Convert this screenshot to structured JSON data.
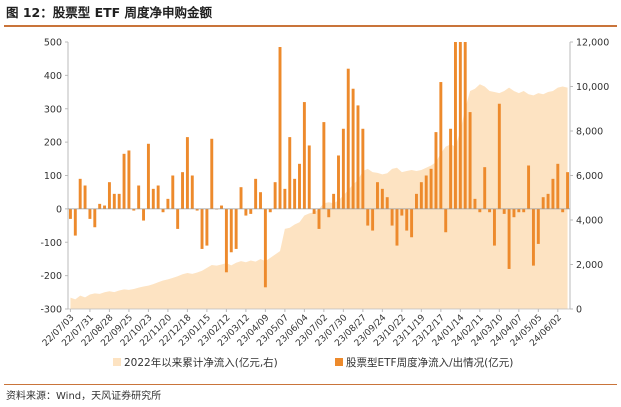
{
  "figure": {
    "title": "图 12：股票型 ETF 周度净申购金额",
    "source": "资料来源：Wind，天风证券研究所"
  },
  "colors": {
    "bar": "#ed8a2c",
    "area": "#fde3c2",
    "rule": "#c9743a",
    "axis": "#bbbbbb"
  },
  "chart_data": {
    "type": "bar",
    "title": "",
    "xlabel": "",
    "ylabel": "",
    "ylim": [
      -300,
      500
    ],
    "y2lim": [
      0,
      12000
    ],
    "yticks": [
      -300,
      -200,
      -100,
      0,
      100,
      200,
      300,
      400,
      500
    ],
    "y2ticks": [
      0,
      2000,
      4000,
      6000,
      8000,
      10000,
      12000
    ],
    "y2tick_labels": [
      "0",
      "2,000",
      "4,000",
      "6,000",
      "8,000",
      "10,000",
      "12,000"
    ],
    "grid": false,
    "legend_position": "bottom",
    "categories": [
      "22/07/03",
      "22/07/10",
      "22/07/17",
      "22/07/24",
      "22/07/31",
      "22/08/07",
      "22/08/14",
      "22/08/21",
      "22/08/28",
      "22/09/04",
      "22/09/11",
      "22/09/18",
      "22/09/25",
      "22/10/02",
      "22/10/09",
      "22/10/16",
      "22/10/23",
      "22/10/30",
      "22/11/06",
      "22/11/13",
      "22/11/20",
      "22/11/27",
      "22/12/04",
      "22/12/11",
      "22/12/18",
      "22/12/25",
      "23/01/01",
      "23/01/08",
      "23/01/15",
      "23/01/22",
      "23/01/29",
      "23/02/05",
      "23/02/12",
      "23/02/19",
      "23/02/26",
      "23/03/05",
      "23/03/12",
      "23/03/19",
      "23/03/26",
      "23/04/02",
      "23/04/09",
      "23/04/16",
      "23/04/23",
      "23/04/30",
      "23/05/07",
      "23/05/14",
      "23/05/21",
      "23/05/28",
      "23/06/04",
      "23/06/11",
      "23/06/18",
      "23/06/25",
      "23/07/02",
      "23/07/09",
      "23/07/16",
      "23/07/23",
      "23/07/30",
      "23/08/06",
      "23/08/13",
      "23/08/20",
      "23/08/27",
      "23/09/03",
      "23/09/10",
      "23/09/17",
      "23/09/24",
      "23/10/01",
      "23/10/08",
      "23/10/15",
      "23/10/22",
      "23/10/29",
      "23/11/05",
      "23/11/12",
      "23/11/19",
      "23/11/26",
      "23/12/03",
      "23/12/10",
      "23/12/17",
      "23/12/24",
      "23/12/31",
      "24/01/07",
      "24/01/14",
      "24/01/21",
      "24/01/28",
      "24/02/04",
      "24/02/11",
      "24/02/18",
      "24/02/25",
      "24/03/03",
      "24/03/10",
      "24/03/17",
      "24/03/24",
      "24/03/31",
      "24/04/07",
      "24/04/14",
      "24/04/21",
      "24/04/28",
      "24/05/05",
      "24/05/12",
      "24/05/19",
      "24/05/26",
      "24/06/02",
      "24/06/09",
      "24/06/16"
    ],
    "x_tick_labels": [
      "22/07/03",
      "22/07/31",
      "22/08/28",
      "22/09/25",
      "22/10/23",
      "22/11/20",
      "22/12/18",
      "23/01/15",
      "23/02/12",
      "23/03/12",
      "23/04/09",
      "23/05/07",
      "23/06/04",
      "23/07/02",
      "23/07/30",
      "23/08/27",
      "23/09/24",
      "23/10/22",
      "23/11/19",
      "23/12/17",
      "24/01/14",
      "24/02/11",
      "24/03/10",
      "24/04/07",
      "24/05/05",
      "24/06/02"
    ],
    "series": [
      {
        "name": "2022年以来累计净流入(亿元,右)",
        "type": "area",
        "axis": "right",
        "values": [
          510,
          430,
          600,
          520,
          650,
          700,
          680,
          750,
          800,
          760,
          830,
          880,
          860,
          900,
          960,
          1010,
          1050,
          1120,
          1200,
          1280,
          1330,
          1400,
          1470,
          1560,
          1620,
          1580,
          1640,
          1720,
          1850,
          1980,
          1950,
          2000,
          2060,
          1960,
          2080,
          2150,
          2100,
          2180,
          2130,
          2250,
          2150,
          2300,
          2450,
          2600,
          3600,
          3650,
          3800,
          3900,
          4200,
          4300,
          4350,
          4500,
          4750,
          4800,
          4750,
          4880,
          5100,
          5350,
          5600,
          5800,
          6200,
          6300,
          6150,
          6120,
          6050,
          6100,
          6300,
          6350,
          6150,
          6200,
          6250,
          6200,
          6250,
          6350,
          6450,
          6600,
          7000,
          7300,
          7400,
          7300,
          8000,
          9000,
          9800,
          9900,
          10100,
          10000,
          9800,
          9750,
          9700,
          9800,
          9950,
          9800,
          9700,
          9800,
          9650,
          9600,
          9700,
          9650,
          9750,
          9800,
          9950,
          10000,
          9950
        ]
      },
      {
        "name": "股票型ETF周度净流入/出情况(亿元)",
        "type": "bar",
        "axis": "left",
        "values": [
          -30,
          -80,
          90,
          70,
          -30,
          -55,
          15,
          10,
          80,
          45,
          45,
          165,
          175,
          -5,
          70,
          -35,
          195,
          60,
          70,
          -10,
          30,
          100,
          -60,
          110,
          215,
          100,
          -5,
          -120,
          -110,
          210,
          0,
          10,
          -190,
          -130,
          -120,
          65,
          -20,
          -15,
          90,
          50,
          -235,
          -10,
          80,
          485,
          60,
          215,
          90,
          135,
          320,
          190,
          -15,
          -60,
          260,
          -25,
          45,
          160,
          240,
          420,
          360,
          310,
          240,
          -50,
          -65,
          80,
          60,
          35,
          -50,
          -110,
          -20,
          -65,
          -85,
          45,
          80,
          100,
          120,
          230,
          380,
          -70,
          240,
          500,
          500,
          500,
          290,
          30,
          -10,
          125,
          -10,
          -110,
          315,
          -15,
          -180,
          -25,
          -10,
          -10,
          130,
          -170,
          -105,
          35,
          45,
          90,
          135,
          -10,
          110
        ]
      }
    ]
  }
}
